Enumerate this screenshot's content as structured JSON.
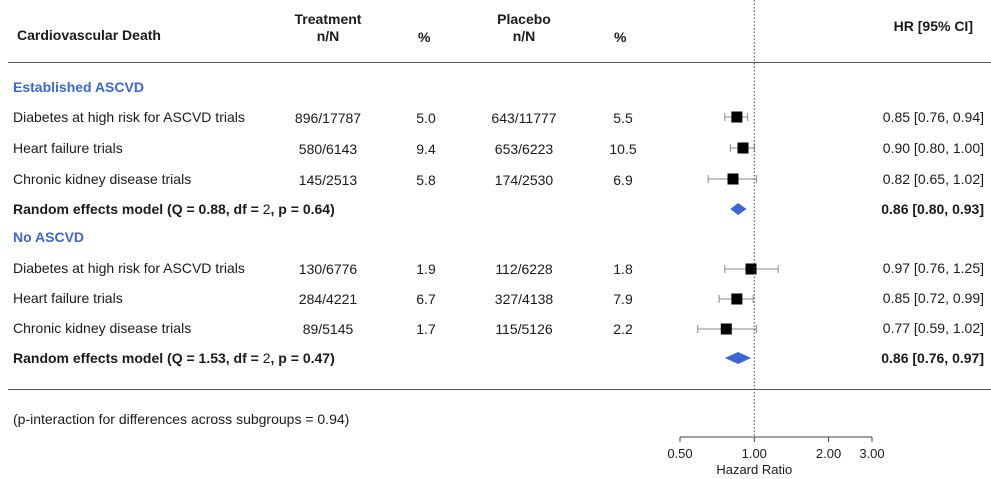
{
  "headers": {
    "outcome": "Cardiovascular Death",
    "treatment_l1": "Treatment",
    "treatment_l2": "n/N",
    "treatment_pct": "%",
    "placebo_l1": "Placebo",
    "placebo_l2": "n/N",
    "placebo_pct": "%",
    "hr": "HR [95% CI]"
  },
  "groups": [
    {
      "name": "Established ASCVD",
      "rows": [
        {
          "label": "Diabetes at high risk for ASCVD trials",
          "t_n": "896/17787",
          "t_pct": "5.0",
          "p_n": "643/11777",
          "p_pct": "5.5",
          "hr_text": "0.85 [0.76, 0.94]"
        },
        {
          "label": "Heart failure trials",
          "t_n": "580/6143",
          "t_pct": "9.4",
          "p_n": "653/6223",
          "p_pct": "10.5",
          "hr_text": "0.90 [0.80, 1.00]"
        },
        {
          "label": "Chronic kidney disease trials",
          "t_n": "145/2513",
          "t_pct": "5.8",
          "p_n": "174/2530",
          "p_pct": "6.9",
          "hr_text": "0.82 [0.65, 1.02]"
        }
      ],
      "summary": {
        "label_a": "Random effects model (Q = 0.88, df = ",
        "label_b": "2",
        "label_c": ", p = 0.64)",
        "hr_text": "0.86 [0.80, 0.93]"
      }
    },
    {
      "name": "No ASCVD",
      "rows": [
        {
          "label": "Diabetes at high risk for ASCVD trials",
          "t_n": "130/6776",
          "t_pct": "1.9",
          "p_n": "112/6228",
          "p_pct": "1.8",
          "hr_text": "0.97 [0.76, 1.25]"
        },
        {
          "label": "Heart failure trials",
          "t_n": "284/4221",
          "t_pct": "6.7",
          "p_n": "327/4138",
          "p_pct": "7.9",
          "hr_text": "0.85 [0.72, 0.99]"
        },
        {
          "label": "Chronic kidney disease trials",
          "t_n": "89/5145",
          "t_pct": "1.7",
          "p_n": "115/5126",
          "p_pct": "2.2",
          "hr_text": "0.77 [0.59, 1.02]"
        }
      ],
      "summary": {
        "label_a": "Random effects model (Q = 1.53, df = ",
        "label_b": "2",
        "label_c": ", p = 0.47)",
        "hr_text": "0.86 [0.76, 0.97]"
      }
    }
  ],
  "footnote": "(p-interaction for differences across subgroups = 0.94)",
  "colors": {
    "accent": "#3a66d6",
    "marker": "#000000",
    "diamond": "#3a66d6"
  },
  "chart_data": {
    "type": "forest",
    "xlabel": "Hazard Ratio",
    "x_scale": "log",
    "xlim": [
      0.5,
      3.0
    ],
    "x_ticks": [
      0.5,
      1.0,
      2.0,
      3.0
    ],
    "x_tick_labels": [
      "0.50",
      "1.00",
      "2.00",
      "3.00"
    ],
    "reference_line": 1.0,
    "estimates": [
      {
        "group": "Established ASCVD",
        "label": "Diabetes at high risk for ASCVD trials",
        "hr": 0.85,
        "lo": 0.76,
        "hi": 0.94,
        "kind": "study"
      },
      {
        "group": "Established ASCVD",
        "label": "Heart failure trials",
        "hr": 0.9,
        "lo": 0.8,
        "hi": 1.0,
        "kind": "study"
      },
      {
        "group": "Established ASCVD",
        "label": "Chronic kidney disease trials",
        "hr": 0.82,
        "lo": 0.65,
        "hi": 1.02,
        "kind": "study"
      },
      {
        "group": "Established ASCVD",
        "label": "Random effects model",
        "hr": 0.86,
        "lo": 0.8,
        "hi": 0.93,
        "kind": "summary"
      },
      {
        "group": "No ASCVD",
        "label": "Diabetes at high risk for ASCVD trials",
        "hr": 0.97,
        "lo": 0.76,
        "hi": 1.25,
        "kind": "study"
      },
      {
        "group": "No ASCVD",
        "label": "Heart failure trials",
        "hr": 0.85,
        "lo": 0.72,
        "hi": 0.99,
        "kind": "study"
      },
      {
        "group": "No ASCVD",
        "label": "Chronic kidney disease trials",
        "hr": 0.77,
        "lo": 0.59,
        "hi": 1.02,
        "kind": "summary_placeholder_study"
      },
      {
        "group": "No ASCVD",
        "label": "Random effects model",
        "hr": 0.86,
        "lo": 0.76,
        "hi": 0.97,
        "kind": "summary"
      }
    ]
  }
}
